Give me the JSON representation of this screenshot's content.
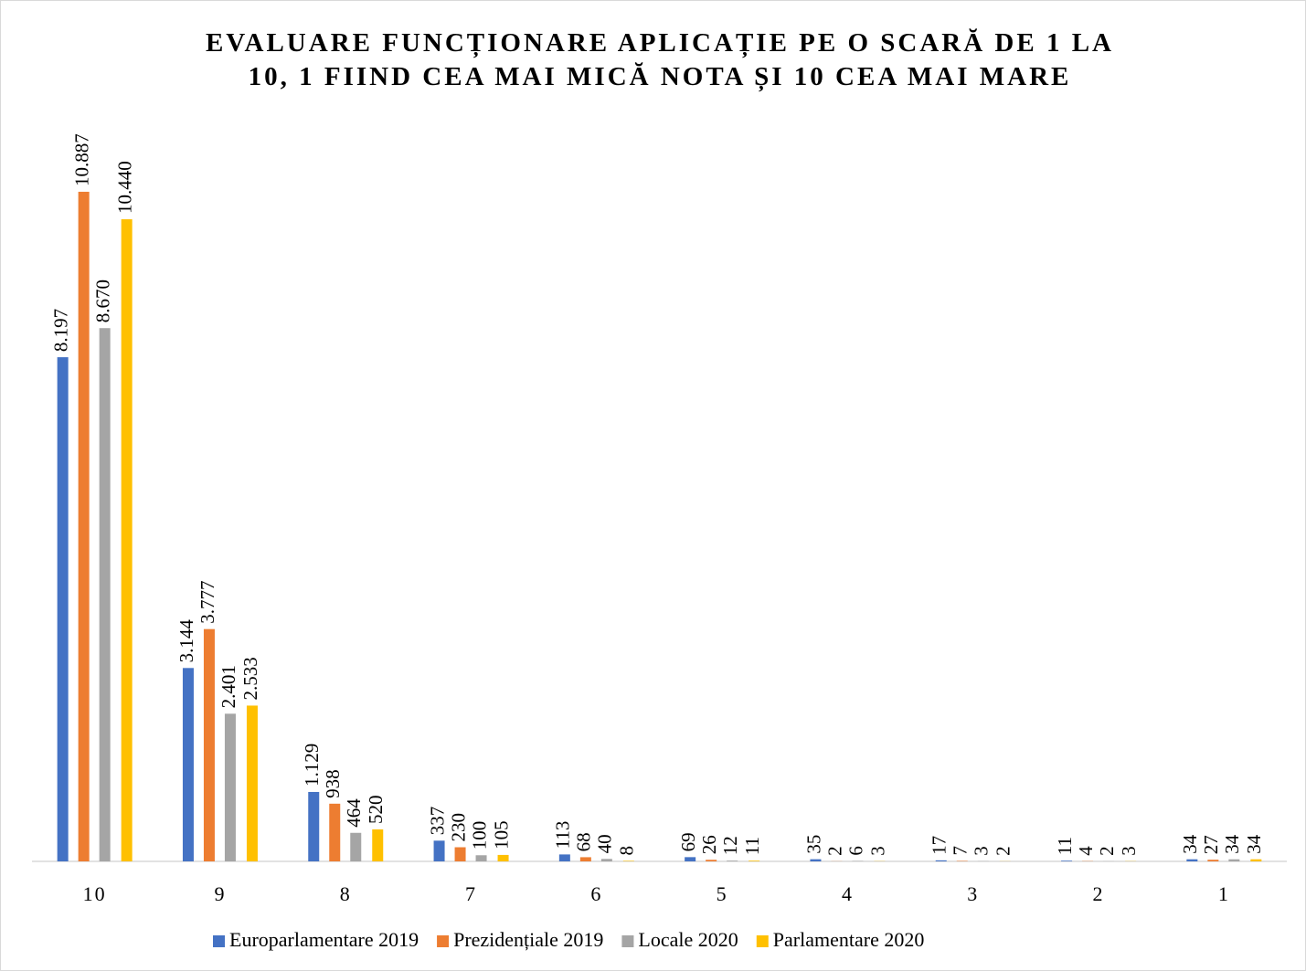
{
  "chart_data": {
    "type": "bar",
    "title": [
      "EVALUARE FUNCȚIONARE APLICAȚIE PE O SCARĂ DE 1 LA",
      "10, 1 FIIND CEA MAI MICĂ NOTA ȘI 10 CEA MAI MARE"
    ],
    "categories": [
      "10",
      "9",
      "8",
      "7",
      "6",
      "5",
      "4",
      "3",
      "2",
      "1"
    ],
    "ylim": [
      0,
      12000
    ],
    "legend": "bottom",
    "series": [
      {
        "name": "Europarlamentare 2019",
        "color": "#4472c4",
        "values": [
          8197,
          3144,
          1129,
          337,
          113,
          69,
          35,
          17,
          11,
          34
        ],
        "value_labels": [
          "8.197",
          "3.144",
          "1.129",
          "337",
          "113",
          "69",
          "35",
          "17",
          "11",
          "34"
        ]
      },
      {
        "name": "Prezidențiale 2019",
        "color": "#ed7d31",
        "values": [
          10887,
          3777,
          938,
          230,
          68,
          26,
          2,
          7,
          4,
          27
        ],
        "value_labels": [
          "10.887",
          "3.777",
          "938",
          "230",
          "68",
          "26",
          "2",
          "7",
          "4",
          "27"
        ]
      },
      {
        "name": "Locale 2020",
        "color": "#a5a5a5",
        "values": [
          8670,
          2401,
          464,
          100,
          40,
          12,
          6,
          3,
          2,
          34
        ],
        "value_labels": [
          "8.670",
          "2.401",
          "464",
          "100",
          "40",
          "12",
          "6",
          "3",
          "2",
          "34"
        ]
      },
      {
        "name": "Parlamentare 2020",
        "color": "#ffc000",
        "values": [
          10440,
          2533,
          520,
          105,
          8,
          11,
          3,
          2,
          3,
          34
        ],
        "value_labels": [
          "10.440",
          "2.533",
          "520",
          "105",
          "8",
          "11",
          "3",
          "2",
          "3",
          "34"
        ]
      }
    ]
  }
}
